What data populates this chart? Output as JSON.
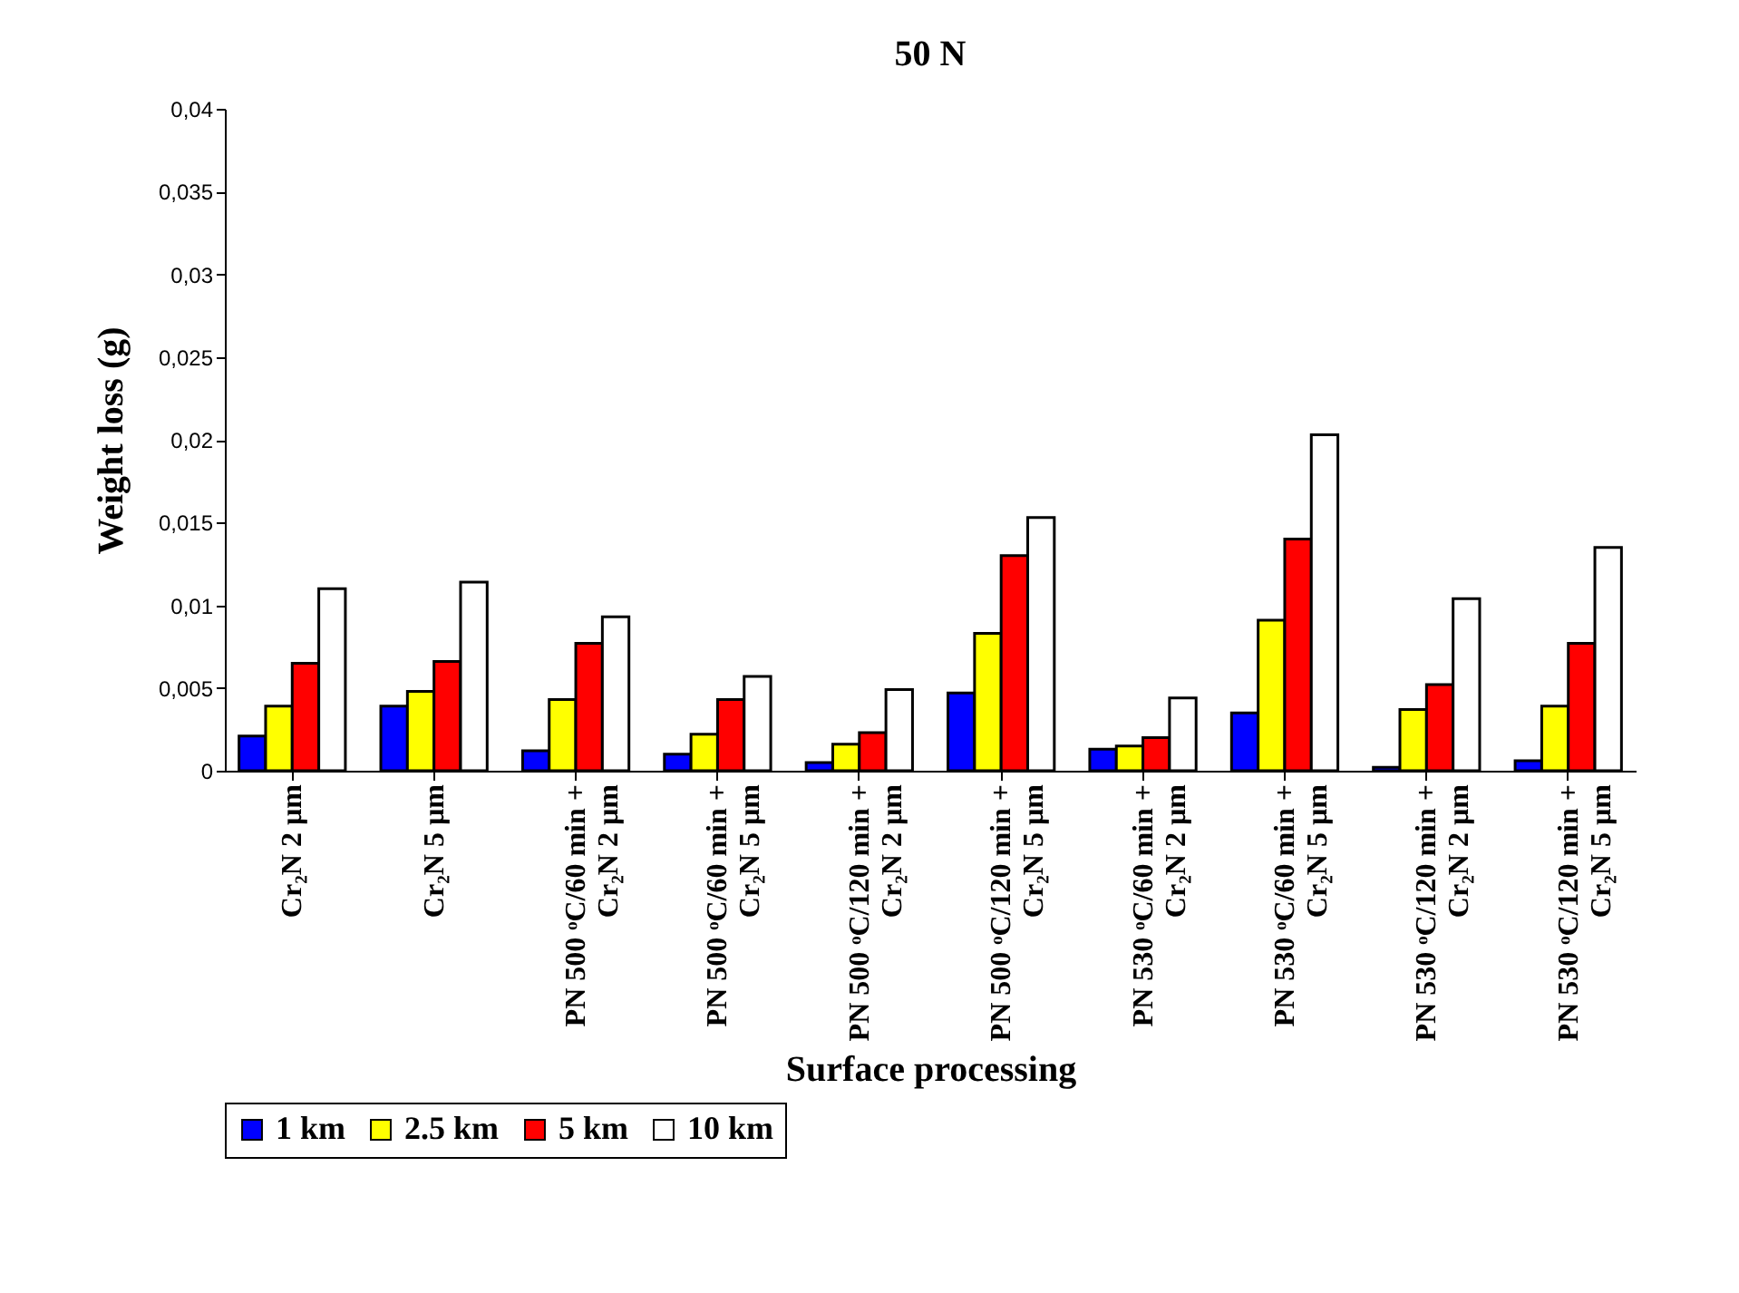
{
  "chart_data": {
    "type": "bar",
    "title": "50 N",
    "xlabel": "Surface processing",
    "ylabel": "Weight loss (g)",
    "categories": [
      "Cr₂N 2 µm",
      "Cr₂N 5 µm",
      "PN 500 ᵒC/60 min + Cr₂N 2 µm",
      "PN 500 ᵒC/60 min + Cr₂N 5 µm",
      "PN 500 ᵒC/120 min + Cr₂N 2 µm",
      "PN 500 ᵒC/120 min + Cr₂N 5 µm",
      "PN 530 ᵒC/60 min + Cr₂N 2 µm",
      "PN 530 ᵒC/60 min + Cr₂N 5 µm",
      "PN 530 ᵒC/120 min + Cr₂N 2 µm",
      "PN 530 ᵒC/120 min + Cr₂N 5 µm"
    ],
    "series": [
      {
        "name": "1 km",
        "color": "#0000ff",
        "values": [
          0.0021,
          0.0039,
          0.0012,
          0.001,
          0.0005,
          0.0047,
          0.0013,
          0.0035,
          0.0002,
          0.0006
        ]
      },
      {
        "name": "2.5 km",
        "color": "#ffff00",
        "values": [
          0.0039,
          0.0048,
          0.0043,
          0.0022,
          0.0016,
          0.0083,
          0.0015,
          0.0091,
          0.0037,
          0.0039
        ]
      },
      {
        "name": "5 km",
        "color": "#ff0000",
        "values": [
          0.0065,
          0.0066,
          0.0077,
          0.0043,
          0.0023,
          0.013,
          0.002,
          0.014,
          0.0052,
          0.0077
        ]
      },
      {
        "name": "10 km",
        "color": "#ffffff",
        "values": [
          0.011,
          0.0114,
          0.0093,
          0.0057,
          0.0049,
          0.0153,
          0.0044,
          0.0203,
          0.0104,
          0.0135
        ]
      }
    ],
    "ylim": [
      0,
      0.04
    ],
    "yticks": [
      0,
      {
        "value": 0.005,
        "label": "0,005"
      },
      {
        "value": 0.01,
        "label": "0,01"
      },
      {
        "value": 0.015,
        "label": "0,015"
      },
      {
        "value": 0.02,
        "label": "0,02"
      },
      {
        "value": 0.025,
        "label": "0,025"
      },
      {
        "value": 0.03,
        "label": "0,03"
      },
      {
        "value": 0.035,
        "label": "0,035"
      },
      {
        "value": 0.04,
        "label": "0,04"
      }
    ],
    "grid": false,
    "legend": "bottom left"
  }
}
